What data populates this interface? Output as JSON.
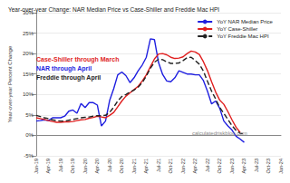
{
  "chart_data": {
    "type": "line",
    "title": "Year-over-year Change: NAR Median Price vs Case-Shiller and Freddie Mac HPI",
    "y_label": "Year-over-year Percent Change",
    "categories": [
      "Jan-19",
      null,
      null,
      "Apr-19",
      null,
      null,
      "Jul-19",
      null,
      null,
      "Oct-19",
      null,
      null,
      "Jan-20",
      null,
      null,
      "Apr-20",
      null,
      null,
      "Jul-20",
      null,
      null,
      "Oct-20",
      null,
      null,
      "Jan-21",
      null,
      null,
      "Apr-21",
      null,
      null,
      "Jul-21",
      null,
      null,
      "Oct-21",
      null,
      null,
      "Jan-22",
      null,
      null,
      "Apr-22",
      null,
      null,
      "Jul-22",
      null,
      null,
      "Oct-22",
      null,
      null,
      "Jan-23",
      null,
      null,
      "Apr-23",
      null,
      null,
      "Jul-23",
      null,
      null,
      "Oct-23",
      null,
      null,
      "Jan-24"
    ],
    "series": [
      {
        "name": "YoY NAR Median Price",
        "color": "#1f1fe0",
        "line_style": "solid",
        "marker": "none",
        "values": [
          3.5,
          3.6,
          3.8,
          3.6,
          4.3,
          4.3,
          4.3,
          4.7,
          5.9,
          6.2,
          5.4,
          7.8,
          6.8,
          8.0,
          8.0,
          7.4,
          2.3,
          3.5,
          8.5,
          11.4,
          14.8,
          15.5,
          14.6,
          12.9,
          14.1,
          15.8,
          17.2,
          19.1,
          23.6,
          23.4,
          17.8,
          14.9,
          13.3,
          13.1,
          14.1,
          15.8,
          15.4,
          15.0,
          15.0,
          14.8,
          14.8,
          13.4,
          10.8,
          7.7,
          8.4,
          6.6,
          3.5,
          2.3,
          1.3,
          -0.2,
          -0.9,
          -1.7,
          null,
          null,
          null,
          null,
          null,
          null,
          null,
          null,
          null
        ]
      },
      {
        "name": "YoY Case-Shiller",
        "color": "#e01f1f",
        "line_style": "solid",
        "marker": "none",
        "values": [
          4.3,
          4.1,
          3.9,
          3.6,
          3.4,
          3.2,
          3.2,
          3.3,
          3.3,
          3.4,
          3.6,
          3.8,
          3.9,
          4.2,
          4.4,
          4.7,
          4.5,
          4.3,
          4.9,
          5.6,
          7.0,
          8.4,
          9.6,
          10.4,
          11.2,
          12.0,
          13.3,
          14.8,
          16.8,
          18.7,
          19.9,
          20.0,
          19.7,
          19.1,
          18.8,
          18.9,
          19.2,
          20.0,
          20.6,
          20.4,
          19.8,
          18.0,
          15.8,
          13.1,
          10.6,
          8.6,
          7.6,
          5.8,
          3.8,
          2.0,
          0.7,
          null,
          null,
          null,
          null,
          null,
          null,
          null,
          null,
          null,
          null
        ]
      },
      {
        "name": "YoY Freddie Mac HPI",
        "color": "#222222",
        "line_style": "dashed",
        "marker": "none",
        "values": [
          4.9,
          4.6,
          4.3,
          4.1,
          3.8,
          3.6,
          3.5,
          3.5,
          3.7,
          3.9,
          4.1,
          4.3,
          4.4,
          4.5,
          4.7,
          4.8,
          4.8,
          4.9,
          5.6,
          6.9,
          8.4,
          9.5,
          10.0,
          10.6,
          11.1,
          11.8,
          12.9,
          14.5,
          16.4,
          17.9,
          18.6,
          18.5,
          18.0,
          17.6,
          17.6,
          17.7,
          18.3,
          19.0,
          19.1,
          18.3,
          17.4,
          15.7,
          13.2,
          10.8,
          8.9,
          6.8,
          5.4,
          3.9,
          2.4,
          1.2,
          0.5,
          0.4,
          null,
          null,
          null,
          null,
          null,
          null,
          null,
          null,
          null
        ]
      }
    ],
    "ylim": [
      -5,
      30
    ],
    "yticks": [
      {
        "value": -5,
        "label": "-5%"
      },
      {
        "value": 0,
        "label": "0%"
      },
      {
        "value": 5,
        "label": "5%"
      },
      {
        "value": 10,
        "label": "10%"
      },
      {
        "value": 15,
        "label": "15%"
      },
      {
        "value": 20,
        "label": "20%"
      },
      {
        "value": 25,
        "label": "25%"
      },
      {
        "value": 30,
        "label": "30%"
      }
    ],
    "grid": true,
    "legend": "top-right",
    "annotations": [
      {
        "text": "Case-Shiller through March",
        "color": "#e01f1f"
      },
      {
        "text": "NAR through April",
        "color": "#1f1fe0"
      },
      {
        "text": "Freddie through April",
        "color": "#222222"
      },
      {
        "text": "calculatedriskblog.com",
        "color": "#8a8a8a"
      }
    ]
  }
}
